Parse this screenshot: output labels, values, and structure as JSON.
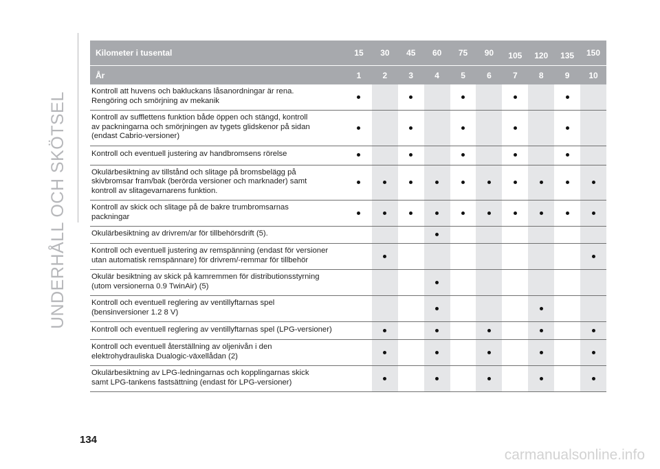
{
  "side_title": "UNDERHÅLL OCH SKÖTSEL",
  "page_number": "134",
  "watermark": "carmanualsonline.info",
  "colors": {
    "header_bg": "#a7a9ad",
    "shaded_cell": "#e5e6e8",
    "side_text": "#b6b7ba",
    "dot": "#111111"
  },
  "header": {
    "km_label": "Kilometer i tusental",
    "km_values": [
      "15",
      "30",
      "45",
      "60",
      "75",
      "90",
      "105",
      "120",
      "135",
      "150"
    ],
    "year_label": "År",
    "year_values": [
      "1",
      "2",
      "3",
      "4",
      "5",
      "6",
      "7",
      "8",
      "9",
      "10"
    ]
  },
  "rows": [
    {
      "text": "Kontroll att huvens och bakluckans låsanordningar är rena.\nRengöring och smörjning av mekanik",
      "dots": [
        true,
        false,
        true,
        false,
        true,
        false,
        true,
        false,
        true,
        false
      ]
    },
    {
      "text": "Kontroll av sufflettens funktion både öppen och stängd, kontroll\nav packningarna och smörjningen av tygets glidskenor på sidan\n(endast Cabrio-versioner)",
      "dots": [
        true,
        false,
        true,
        false,
        true,
        false,
        true,
        false,
        true,
        false
      ]
    },
    {
      "text": "Kontroll och eventuell justering av handbromsens rörelse",
      "dots": [
        true,
        false,
        true,
        false,
        true,
        false,
        true,
        false,
        true,
        false
      ]
    },
    {
      "text": "Okulärbesiktning av tillstånd och slitage på bromsbelägg på\nskivbromsar fram/bak (berörda versioner och marknader) samt\nkontroll av slitagevarnarens funktion.",
      "dots": [
        true,
        true,
        true,
        true,
        true,
        true,
        true,
        true,
        true,
        true
      ]
    },
    {
      "text": "Kontroll av skick och slitage på de bakre trumbromsarnas\npackningar",
      "dots": [
        true,
        true,
        true,
        true,
        true,
        true,
        true,
        true,
        true,
        true
      ]
    },
    {
      "text": "Okulärbesiktning av drivrem/ar för tillbehörsdrift (5).",
      "dots": [
        false,
        false,
        false,
        true,
        false,
        false,
        false,
        false,
        false,
        false
      ]
    },
    {
      "text": "Kontroll och eventuell justering av remspänning (endast för versioner\nutan automatisk remspännare) för drivrem/-remmar för tillbehör",
      "dots": [
        false,
        true,
        false,
        false,
        false,
        false,
        false,
        false,
        false,
        true
      ]
    },
    {
      "text": "Okulär besiktning av skick på kamremmen för distributionsstyrning\n(utom versionerna 0.9 TwinAir) (5)",
      "dots": [
        false,
        false,
        false,
        true,
        false,
        false,
        false,
        false,
        false,
        false
      ]
    },
    {
      "text": "Kontroll och eventuell reglering av ventillyftarnas spel\n(bensinversioner 1.2 8 V)",
      "dots": [
        false,
        false,
        false,
        true,
        false,
        false,
        false,
        true,
        false,
        false
      ]
    },
    {
      "text": "Kontroll och eventuell reglering av ventillyftarnas spel (LPG-versioner)",
      "dots": [
        false,
        true,
        false,
        true,
        false,
        true,
        false,
        true,
        false,
        true
      ]
    },
    {
      "text": "Kontroll och eventuell återställning av oljenivån i den\nelektrohydrauliska Dualogic-växellådan (2)",
      "dots": [
        false,
        true,
        false,
        true,
        false,
        true,
        false,
        true,
        false,
        true
      ]
    },
    {
      "text": "Okulärbesiktning av LPG-ledningarnas och kopplingarnas skick\nsamt LPG-tankens fastsättning (endast för LPG-versioner)",
      "dots": [
        false,
        true,
        false,
        true,
        false,
        true,
        false,
        true,
        false,
        true
      ]
    }
  ]
}
